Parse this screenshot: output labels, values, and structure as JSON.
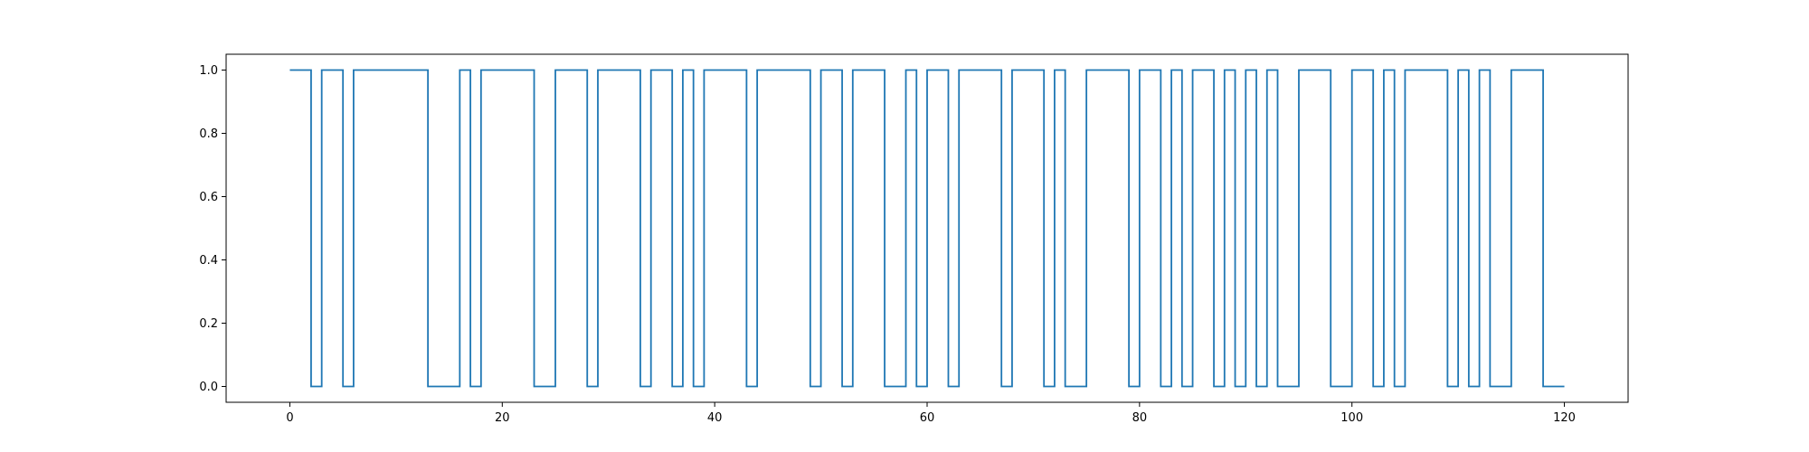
{
  "chart_data": {
    "type": "line",
    "step": "post",
    "title": "",
    "xlabel": "",
    "ylabel": "",
    "xlim": [
      -6,
      126
    ],
    "ylim": [
      -0.05,
      1.05
    ],
    "xticks": [
      0,
      20,
      40,
      60,
      80,
      100,
      120
    ],
    "yticks": [
      0.0,
      0.2,
      0.4,
      0.6,
      0.8,
      1.0
    ],
    "xtick_labels": [
      "0",
      "20",
      "40",
      "60",
      "80",
      "100",
      "120"
    ],
    "ytick_labels": [
      "0.0",
      "0.2",
      "0.4",
      "0.6",
      "0.8",
      "1.0"
    ],
    "grid": false,
    "series": [
      {
        "color": "#1f77b4",
        "x": [
          0,
          1,
          2,
          3,
          4,
          5,
          6,
          7,
          8,
          9,
          10,
          11,
          12,
          13,
          14,
          15,
          16,
          17,
          18,
          19,
          20,
          21,
          22,
          23,
          24,
          25,
          26,
          27,
          28,
          29,
          30,
          31,
          32,
          33,
          34,
          35,
          36,
          37,
          38,
          39,
          40,
          41,
          42,
          43,
          44,
          45,
          46,
          47,
          48,
          49,
          50,
          51,
          52,
          53,
          54,
          55,
          56,
          57,
          58,
          59,
          60,
          61,
          62,
          63,
          64,
          65,
          66,
          67,
          68,
          69,
          70,
          71,
          72,
          73,
          74,
          75,
          76,
          77,
          78,
          79,
          80,
          81,
          82,
          83,
          84,
          85,
          86,
          87,
          88,
          89,
          90,
          91,
          92,
          93,
          94,
          95,
          96,
          97,
          98,
          99,
          100,
          101,
          102,
          103,
          104,
          105,
          106,
          107,
          108,
          109,
          110,
          111,
          112,
          113,
          114,
          115,
          116,
          117,
          118,
          119,
          120
        ],
        "y": [
          1,
          1,
          0,
          1,
          1,
          0,
          1,
          1,
          1,
          1,
          1,
          1,
          1,
          0,
          0,
          0,
          1,
          0,
          1,
          1,
          1,
          1,
          1,
          0,
          0,
          1,
          1,
          1,
          0,
          1,
          1,
          1,
          1,
          0,
          1,
          1,
          0,
          1,
          0,
          1,
          1,
          1,
          1,
          0,
          1,
          1,
          1,
          1,
          1,
          0,
          1,
          1,
          0,
          1,
          1,
          1,
          0,
          0,
          1,
          0,
          1,
          1,
          0,
          1,
          1,
          1,
          1,
          0,
          1,
          1,
          1,
          0,
          1,
          0,
          0,
          1,
          1,
          1,
          1,
          0,
          1,
          1,
          0,
          1,
          0,
          1,
          1,
          0,
          1,
          0,
          1,
          0,
          1,
          0,
          0,
          1,
          1,
          1,
          0,
          0,
          1,
          1,
          0,
          1,
          0,
          1,
          1,
          1,
          1,
          0,
          1,
          0,
          1,
          0,
          0,
          1,
          1,
          1,
          0,
          0,
          0
        ]
      }
    ]
  }
}
